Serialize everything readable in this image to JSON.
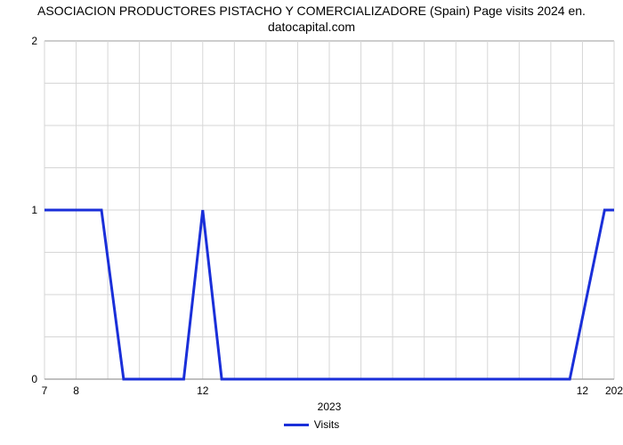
{
  "chart": {
    "type": "line",
    "title_line1": "ASOCIACION PRODUCTORES PISTACHO Y COMERCIALIZADORE (Spain) Page visits 2024 en.",
    "title_line2": "datocapital.com",
    "title_fontsize": 14,
    "x_axis_title": "2023",
    "legend_label": "Visits",
    "background_color": "#ffffff",
    "grid_color": "#d6d6d6",
    "border_color": "#9b9b9b",
    "line_color": "#1a2fd9",
    "line_width": 3,
    "legend_swatch_color": "#1a2fd9",
    "ylim": [
      0,
      2
    ],
    "y_ticks": [
      0,
      1,
      2
    ],
    "x_labels": [
      "7",
      "8",
      "",
      "",
      "",
      "12",
      "",
      "",
      "",
      "",
      "",
      "",
      "",
      "",
      "",
      "",
      "",
      "12",
      "202"
    ],
    "x_values": [
      7,
      8,
      9,
      10,
      11,
      12,
      13,
      14,
      15,
      16,
      17,
      18,
      19,
      20,
      21,
      22,
      23,
      24,
      25
    ],
    "series_x": [
      7,
      7.4,
      8.8,
      9.5,
      10.2,
      10.6,
      11.4,
      12.0,
      12.6,
      13.3,
      13.7,
      21.3,
      23.6,
      24.7,
      25
    ],
    "series_y": [
      1,
      1,
      1,
      0,
      0,
      0,
      0,
      1,
      0,
      0,
      0,
      0,
      0,
      1,
      1
    ],
    "xlim": [
      7,
      25
    ]
  }
}
